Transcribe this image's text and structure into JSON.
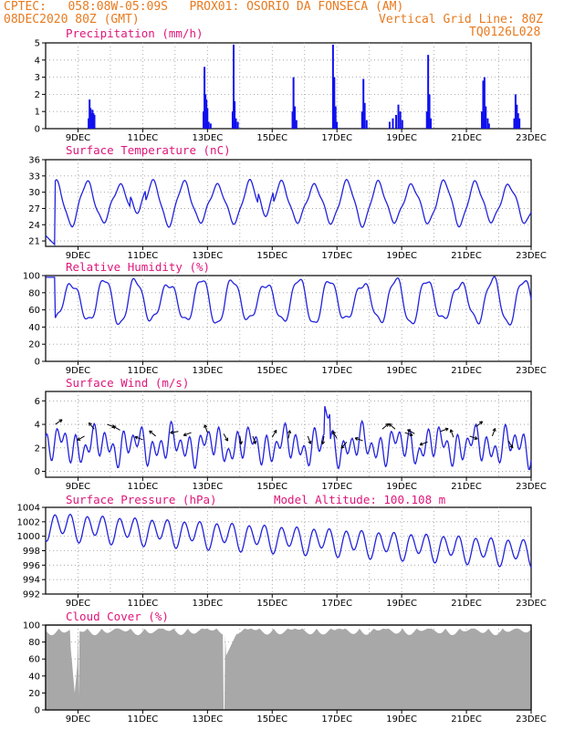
{
  "header": {
    "line1_left": "CPTEC:   058:08W-05:09S   PROX01: OSORIO DA FONSECA (AM)",
    "line2_left": "08DEC2020 80Z (GMT)",
    "line2_right": "Vertical Grid Line: 80Z",
    "line3_right": "TQ0126L028"
  },
  "x_labels": [
    "9DEC",
    "11DEC",
    "13DEC",
    "15DEC",
    "17DEC",
    "19DEC",
    "21DEC",
    "23DEC"
  ],
  "chart_data": [
    {
      "type": "bar",
      "title": "Precipitation (mm/h)",
      "ylim": [
        0,
        5
      ],
      "yticks": [
        0,
        1,
        2,
        3,
        4,
        5
      ],
      "color": "#1010ee",
      "bars": [
        [
          1.0,
          0.6
        ],
        [
          1.03,
          1.7
        ],
        [
          1.06,
          1.2
        ],
        [
          1.09,
          0.9
        ],
        [
          1.12,
          1.1
        ],
        [
          1.15,
          0.9
        ],
        [
          1.18,
          0.8
        ],
        [
          4.0,
          1.0
        ],
        [
          4.03,
          3.6
        ],
        [
          4.06,
          2.0
        ],
        [
          4.09,
          1.7
        ],
        [
          4.12,
          1.2
        ],
        [
          4.16,
          0.4
        ],
        [
          4.22,
          0.3
        ],
        [
          5.0,
          1.0
        ],
        [
          5.03,
          4.9
        ],
        [
          5.06,
          1.6
        ],
        [
          5.1,
          0.6
        ],
        [
          5.16,
          0.4
        ],
        [
          7.0,
          1.0
        ],
        [
          7.03,
          3.0
        ],
        [
          7.07,
          1.3
        ],
        [
          7.12,
          0.5
        ],
        [
          8.0,
          4.9
        ],
        [
          8.04,
          3.0
        ],
        [
          8.08,
          1.3
        ],
        [
          8.12,
          0.4
        ],
        [
          9.0,
          1.0
        ],
        [
          9.04,
          2.9
        ],
        [
          9.08,
          1.5
        ],
        [
          9.14,
          0.5
        ],
        [
          9.35,
          0.4
        ],
        [
          9.45,
          0.6
        ],
        [
          9.55,
          0.8
        ],
        [
          9.62,
          1.4
        ],
        [
          9.68,
          1.0
        ],
        [
          9.74,
          0.5
        ],
        [
          10.0,
          1.0
        ],
        [
          10.04,
          4.3
        ],
        [
          10.08,
          2.0
        ],
        [
          10.12,
          0.6
        ],
        [
          12.0,
          1.0
        ],
        [
          12.04,
          2.8
        ],
        [
          12.08,
          3.0
        ],
        [
          12.12,
          1.3
        ],
        [
          12.18,
          0.6
        ],
        [
          12.22,
          0.3
        ],
        [
          13.0,
          0.6
        ],
        [
          13.04,
          2.0
        ],
        [
          13.08,
          1.4
        ],
        [
          13.12,
          0.9
        ],
        [
          13.16,
          0.6
        ]
      ]
    },
    {
      "type": "line",
      "title": "Surface Temperature (nC)",
      "ylim": [
        20,
        36
      ],
      "yticks": [
        21,
        24,
        27,
        30,
        33,
        36
      ],
      "color": "#2222dd"
    },
    {
      "type": "line",
      "title": "Relative Humidity (%)",
      "ylim": [
        0,
        100
      ],
      "yticks": [
        0,
        20,
        40,
        60,
        80,
        100
      ],
      "color": "#2222dd"
    },
    {
      "type": "line",
      "title": "Surface Wind (m/s)",
      "ylim": [
        -0.5,
        6.8
      ],
      "yticks": [
        0,
        2,
        4,
        6
      ],
      "color": "#2222dd"
    },
    {
      "type": "line",
      "title": "Surface Pressure (hPa)",
      "subtitle": "Model Altitude: 100.108 m",
      "ylim": [
        992,
        1004
      ],
      "yticks": [
        992,
        994,
        996,
        998,
        1000,
        1002,
        1004
      ],
      "color": "#2222dd"
    },
    {
      "type": "area",
      "title": "Cloud Cover (%)",
      "ylim": [
        0,
        100
      ],
      "yticks": [
        0,
        20,
        40,
        60,
        80,
        100
      ],
      "color": "#a8a8a8"
    }
  ]
}
